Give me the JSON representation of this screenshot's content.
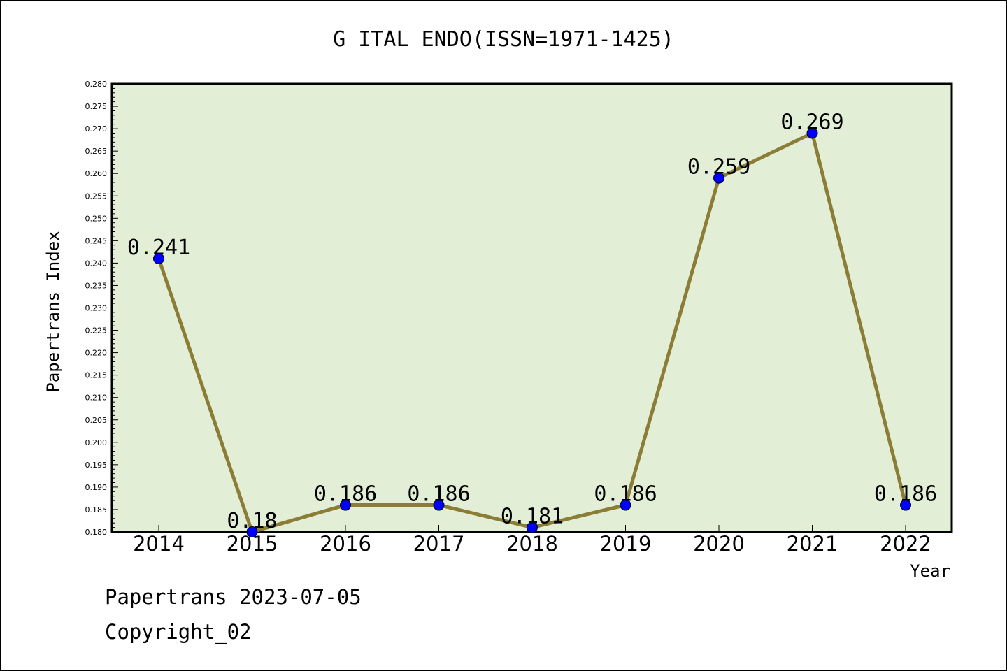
{
  "chart_data": {
    "type": "line",
    "title": "G ITAL ENDO(ISSN=1971-1425)",
    "xlabel": "Year",
    "ylabel": "Papertrans Index",
    "categories": [
      "2014",
      "2015",
      "2016",
      "2017",
      "2018",
      "2019",
      "2020",
      "2021",
      "2022"
    ],
    "series": [
      {
        "values": [
          0.241,
          0.18,
          0.186,
          0.186,
          0.181,
          0.186,
          0.259,
          0.269,
          0.186
        ]
      }
    ],
    "data_labels": [
      "0.241",
      "0.18",
      "0.186",
      "0.186",
      "0.181",
      "0.186",
      "0.259",
      "0.269",
      "0.186"
    ],
    "ylim": [
      0.18,
      0.28
    ],
    "ytick_step": 0.005,
    "ytick_labels": [
      "0.180",
      "0.185",
      "0.190",
      "0.195",
      "0.200",
      "0.205",
      "0.210",
      "0.215",
      "0.220",
      "0.225",
      "0.230",
      "0.235",
      "0.240",
      "0.245",
      "0.250",
      "0.255",
      "0.260",
      "0.265",
      "0.270",
      "0.275",
      "0.280"
    ],
    "grid": false,
    "legend": "none",
    "colors": {
      "plot_background": "#e2efd6",
      "line": "#8b7d36",
      "marker": "#0000ff"
    }
  },
  "footer": {
    "line1": "Papertrans 2023-07-05",
    "line2": "Copyright_02"
  }
}
